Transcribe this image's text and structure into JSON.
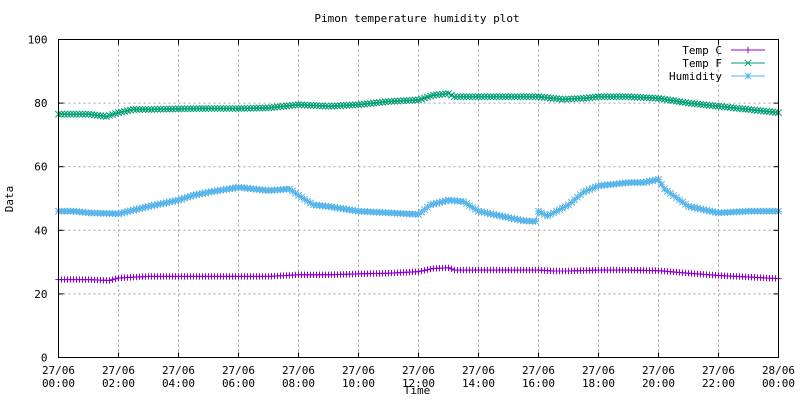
{
  "chart_data": {
    "type": "line",
    "title": "Pimon temperature  humidity plot",
    "xlabel": "Time",
    "ylabel": "Data",
    "ylim": [
      0,
      100
    ],
    "yticks": [
      0,
      20,
      40,
      60,
      80,
      100
    ],
    "x_range": [
      "27/06 00:00",
      "28/06 00:00"
    ],
    "xticks": [
      {
        "date": "27/06",
        "time": "00:00",
        "hour": 0
      },
      {
        "date": "27/06",
        "time": "02:00",
        "hour": 2
      },
      {
        "date": "27/06",
        "time": "04:00",
        "hour": 4
      },
      {
        "date": "27/06",
        "time": "06:00",
        "hour": 6
      },
      {
        "date": "27/06",
        "time": "08:00",
        "hour": 8
      },
      {
        "date": "27/06",
        "time": "10:00",
        "hour": 10
      },
      {
        "date": "27/06",
        "time": "12:00",
        "hour": 12
      },
      {
        "date": "27/06",
        "time": "14:00",
        "hour": 14
      },
      {
        "date": "27/06",
        "time": "16:00",
        "hour": 16
      },
      {
        "date": "27/06",
        "time": "18:00",
        "hour": 18
      },
      {
        "date": "27/06",
        "time": "20:00",
        "hour": 20
      },
      {
        "date": "27/06",
        "time": "22:00",
        "hour": 22
      },
      {
        "date": "28/06",
        "time": "00:00",
        "hour": 24
      }
    ],
    "grid": true,
    "legend_position": "top-right",
    "series": [
      {
        "name": "Temp C",
        "color": "#9400d3",
        "marker": "plus",
        "points": [
          [
            0,
            24.5
          ],
          [
            1,
            24.5
          ],
          [
            1.7,
            24.2
          ],
          [
            2,
            25
          ],
          [
            3,
            25.5
          ],
          [
            4,
            25.5
          ],
          [
            5,
            25.5
          ],
          [
            6,
            25.5
          ],
          [
            7,
            25.5
          ],
          [
            8,
            26
          ],
          [
            9,
            26
          ],
          [
            10,
            26.3
          ],
          [
            11,
            26.5
          ],
          [
            12,
            27
          ],
          [
            12.5,
            28
          ],
          [
            13,
            28.2
          ],
          [
            13.2,
            27.5
          ],
          [
            14,
            27.5
          ],
          [
            15,
            27.5
          ],
          [
            16,
            27.5
          ],
          [
            16.5,
            27.2
          ],
          [
            17,
            27.2
          ],
          [
            18,
            27.5
          ],
          [
            19,
            27.5
          ],
          [
            20,
            27.3
          ],
          [
            21,
            26.5
          ],
          [
            22,
            25.8
          ],
          [
            23,
            25.3
          ],
          [
            24,
            24.8
          ]
        ]
      },
      {
        "name": "Temp F",
        "color": "#009e73",
        "marker": "cross",
        "points": [
          [
            0,
            76.5
          ],
          [
            1,
            76.5
          ],
          [
            1.6,
            75.8
          ],
          [
            2,
            77
          ],
          [
            2.5,
            78
          ],
          [
            3,
            78
          ],
          [
            4,
            78.2
          ],
          [
            5,
            78.3
          ],
          [
            6,
            78.3
          ],
          [
            7,
            78.5
          ],
          [
            8,
            79.5
          ],
          [
            9,
            79
          ],
          [
            10,
            79.5
          ],
          [
            11,
            80.5
          ],
          [
            12,
            81
          ],
          [
            12.5,
            82.5
          ],
          [
            13,
            83
          ],
          [
            13.2,
            82
          ],
          [
            14,
            82
          ],
          [
            15,
            82
          ],
          [
            16,
            82
          ],
          [
            16.8,
            81.2
          ],
          [
            17.5,
            81.5
          ],
          [
            18,
            82
          ],
          [
            19,
            82
          ],
          [
            20,
            81.5
          ],
          [
            21,
            80
          ],
          [
            22,
            79
          ],
          [
            23,
            78
          ],
          [
            24,
            77
          ]
        ]
      },
      {
        "name": "Humidity",
        "color": "#56b4e9",
        "marker": "star",
        "points": [
          [
            0,
            46
          ],
          [
            0.5,
            46
          ],
          [
            1,
            45.5
          ],
          [
            2,
            45.2
          ],
          [
            3,
            47.5
          ],
          [
            4,
            49.5
          ],
          [
            4.5,
            51
          ],
          [
            5,
            52
          ],
          [
            6,
            53.5
          ],
          [
            7,
            52.5
          ],
          [
            7.7,
            53
          ],
          [
            8,
            51
          ],
          [
            8.5,
            48
          ],
          [
            9,
            47.5
          ],
          [
            10,
            46
          ],
          [
            11,
            45.5
          ],
          [
            12,
            45
          ],
          [
            12.4,
            48
          ],
          [
            13,
            49.5
          ],
          [
            13.5,
            49
          ],
          [
            14,
            46
          ],
          [
            15,
            44
          ],
          [
            15.5,
            43
          ],
          [
            15.9,
            42.8
          ],
          [
            16,
            46
          ],
          [
            16.3,
            44.5
          ],
          [
            17,
            48
          ],
          [
            17.5,
            52
          ],
          [
            18,
            54
          ],
          [
            19,
            55
          ],
          [
            19.5,
            55
          ],
          [
            20,
            56
          ],
          [
            20.2,
            53
          ],
          [
            21,
            47.5
          ],
          [
            21.5,
            46.5
          ],
          [
            22,
            45.5
          ],
          [
            23,
            46
          ],
          [
            24,
            46
          ]
        ]
      }
    ]
  }
}
